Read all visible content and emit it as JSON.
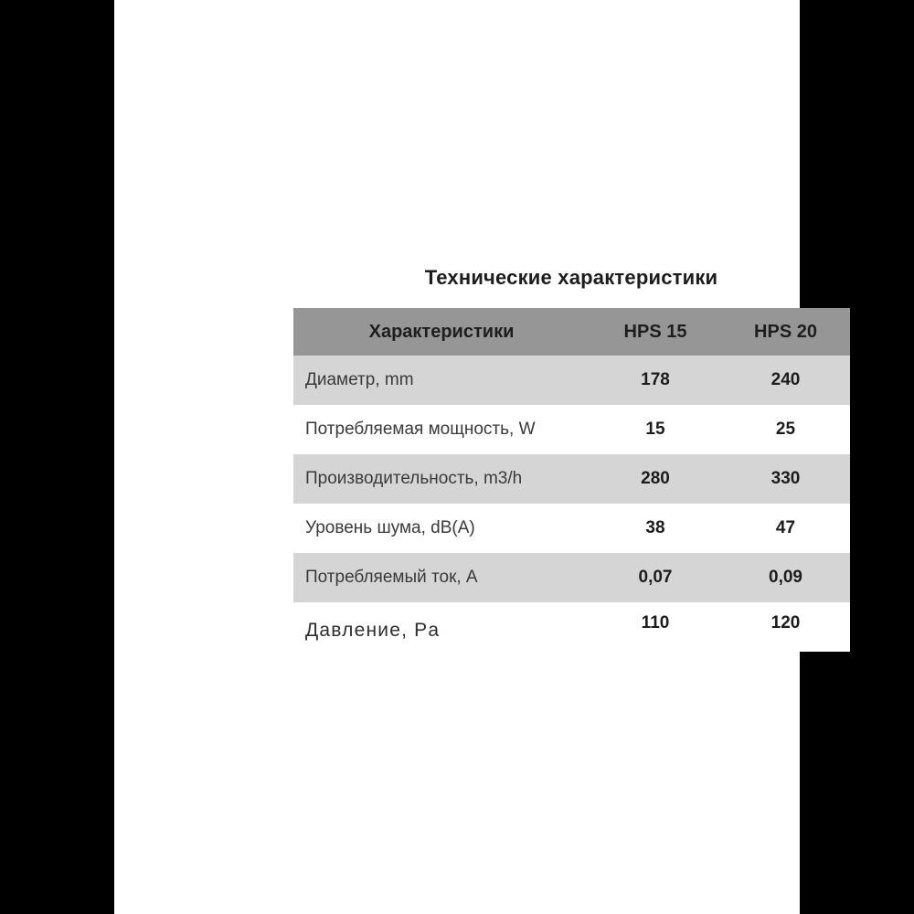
{
  "page": {
    "background_color": "#000000",
    "canvas_color": "#ffffff",
    "title": "Технические характеристики"
  },
  "table": {
    "colors": {
      "header_bg": "#969696",
      "shaded_row_bg": "#d5d5d5",
      "header_text": "#1e1e1e",
      "label_text": "#3a3a3a",
      "value_text": "#1c1c1c"
    },
    "header": {
      "label": "Характеристики",
      "col_hps15": "HPS 15",
      "col_hps20": "HPS 20"
    },
    "rows": [
      {
        "label": "Диаметр, mm",
        "hps15": "178",
        "hps20": "240"
      },
      {
        "label": "Потребляемая мощность, W",
        "hps15": "15",
        "hps20": "25"
      },
      {
        "label": "Производительность, m3/h",
        "hps15": "280",
        "hps20": "330"
      },
      {
        "label": "Уровень шума, dB(A)",
        "hps15": "38",
        "hps20": "47"
      },
      {
        "label": "Потребляемый ток, A",
        "hps15": "0,07",
        "hps20": "0,09"
      },
      {
        "label": "Давление, Pa",
        "hps15": "110",
        "hps20": "120"
      }
    ]
  }
}
